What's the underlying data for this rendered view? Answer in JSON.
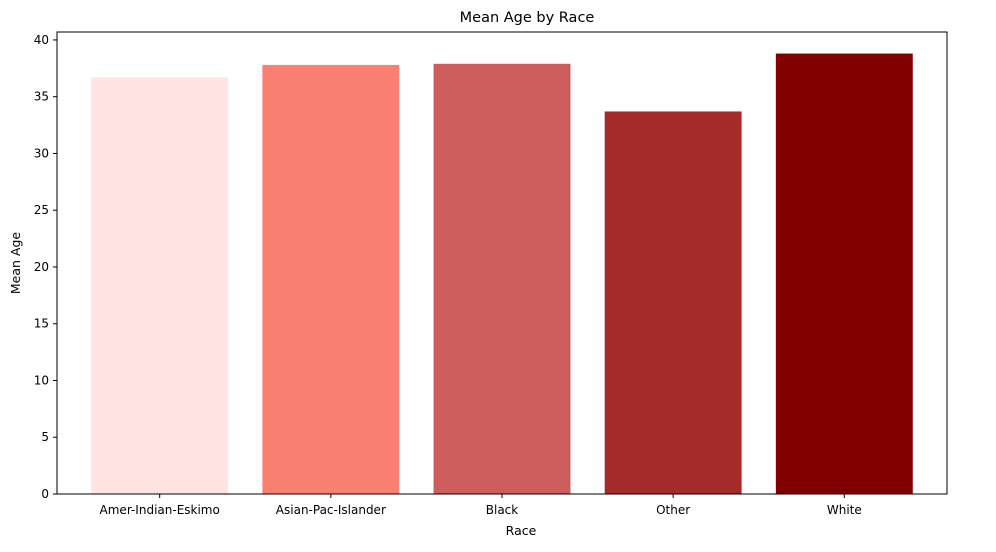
{
  "chart_data": {
    "type": "bar",
    "title": "Mean Age by Race",
    "xlabel": "Race",
    "ylabel": "Mean Age",
    "categories": [
      "Amer-Indian-Eskimo",
      "Asian-Pac-Islander",
      "Black",
      "Other",
      "White"
    ],
    "values": [
      36.7,
      37.8,
      37.9,
      33.7,
      38.8
    ],
    "colors": [
      "#ffe4e1",
      "#fa8072",
      "#cd5c5c",
      "#a52a2a",
      "#800000"
    ],
    "ylim": [
      0,
      40.7
    ],
    "yticks": [
      0,
      5,
      10,
      15,
      20,
      25,
      30,
      35,
      40
    ],
    "grid": false,
    "legend": "none"
  }
}
